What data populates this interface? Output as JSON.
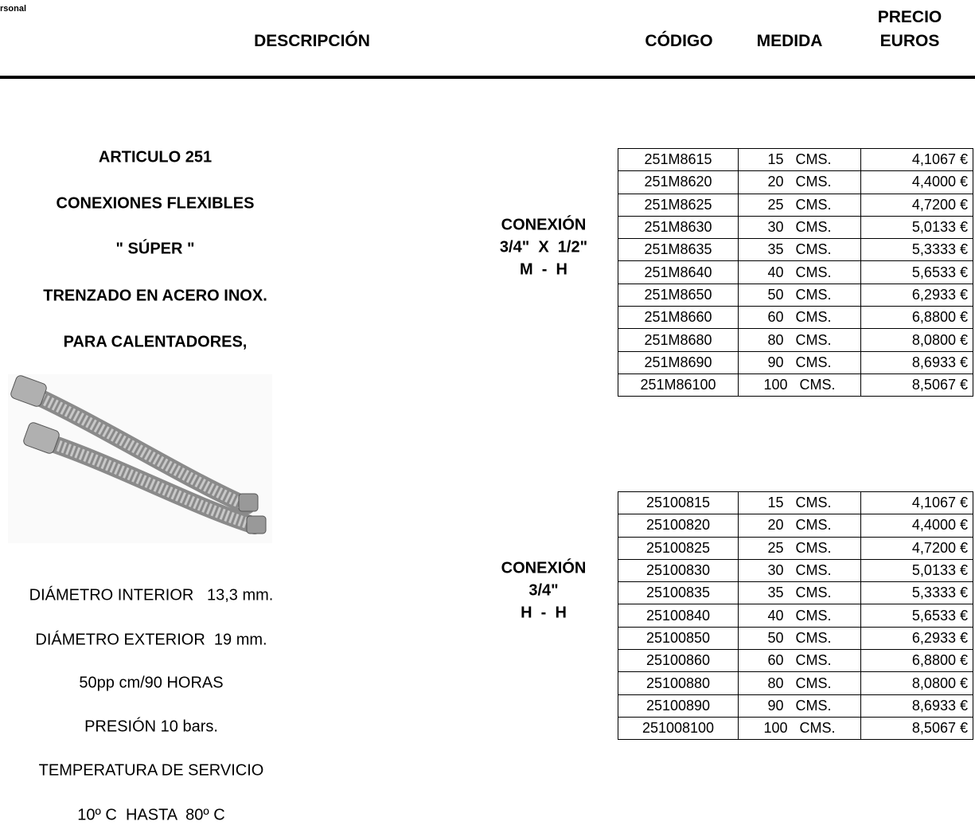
{
  "header": {
    "corner": "rsonal",
    "columns": [
      "DESCRIPCIÓN",
      "CÓDIGO",
      "MEDIDA",
      "PRECIO",
      "EUROS"
    ]
  },
  "product": {
    "lines": [
      "ARTICULO 251",
      "CONEXIONES FLEXIBLES",
      "\" SÚPER \"",
      "TRENZADO EN ACERO INOX.",
      "PARA CALENTADORES,"
    ],
    "specs": [
      "DIÁMETRO INTERIOR   13,3 mm.",
      "DIÁMETRO EXTERIOR  19 mm.",
      "50pp cm/90 HORAS",
      "PRESIÓN 10 bars.",
      "TEMPERATURA DE SERVICIO",
      "10º C  HASTA  80º C"
    ]
  },
  "tables": [
    {
      "label": [
        "CONEXIÓN",
        "3/4\"  X  1/2\"",
        "M  -  H"
      ],
      "rows": [
        [
          "251M8615",
          "15   CMS.",
          "4,1067 €"
        ],
        [
          "251M8620",
          "20   CMS.",
          "4,4000 €"
        ],
        [
          "251M8625",
          "25   CMS.",
          "4,7200 €"
        ],
        [
          "251M8630",
          "30   CMS.",
          "5,0133 €"
        ],
        [
          "251M8635",
          "35   CMS.",
          "5,3333 €"
        ],
        [
          "251M8640",
          "40   CMS.",
          "5,6533 €"
        ],
        [
          "251M8650",
          "50   CMS.",
          "6,2933 €"
        ],
        [
          "251M8660",
          "60   CMS.",
          "6,8800 €"
        ],
        [
          "251M8680",
          "80   CMS.",
          "8,0800 €"
        ],
        [
          "251M8690",
          "90   CMS.",
          "8,6933 €"
        ],
        [
          "251M86100",
          "100   CMS.",
          "8,5067 €"
        ]
      ]
    },
    {
      "label": [
        "CONEXIÓN",
        "3/4\"",
        "H  -  H"
      ],
      "rows": [
        [
          "25100815",
          "15   CMS.",
          "4,1067 €"
        ],
        [
          "25100820",
          "20   CMS.",
          "4,4000 €"
        ],
        [
          "25100825",
          "25   CMS.",
          "4,7200 €"
        ],
        [
          "25100830",
          "30   CMS.",
          "5,0133 €"
        ],
        [
          "25100835",
          "35   CMS.",
          "5,3333 €"
        ],
        [
          "25100840",
          "40   CMS.",
          "5,6533 €"
        ],
        [
          "25100850",
          "50   CMS.",
          "6,2933 €"
        ],
        [
          "25100860",
          "60   CMS.",
          "6,8800 €"
        ],
        [
          "25100880",
          "80   CMS.",
          "8,0800 €"
        ],
        [
          "25100890",
          "90   CMS.",
          "8,6933 €"
        ],
        [
          "251008100",
          "100   CMS.",
          "8,5067 €"
        ]
      ]
    }
  ]
}
